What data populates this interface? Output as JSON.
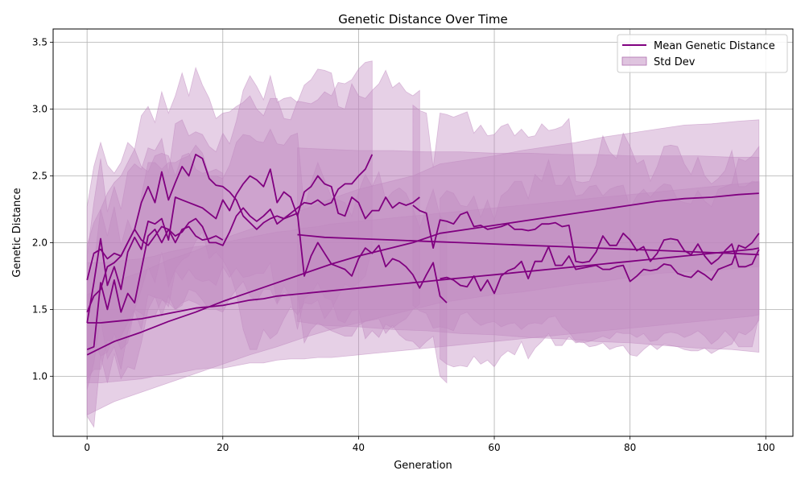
{
  "chart_data": {
    "type": "line",
    "title": "Genetic Distance Over Time",
    "xlabel": "Generation",
    "ylabel": "Genetic Distance",
    "xlim": [
      -5,
      104
    ],
    "ylim": [
      0.55,
      3.6
    ],
    "xticks": [
      0,
      20,
      40,
      60,
      80,
      100
    ],
    "yticks": [
      1.0,
      1.5,
      2.0,
      2.5,
      3.0,
      3.5
    ],
    "xtick_labels": [
      "0",
      "20",
      "40",
      "60",
      "80",
      "100"
    ],
    "ytick_labels": [
      "1.0",
      "1.5",
      "2.0",
      "2.5",
      "3.0",
      "3.5"
    ],
    "grid": true,
    "legend_position": "top-right",
    "legend": {
      "line_label": "Mean Genetic Distance",
      "band_label": "Std Dev"
    },
    "colors": {
      "line": "#800080",
      "band": "#c08ac0"
    },
    "series": [
      {
        "x": [
          0,
          1,
          2,
          3,
          4,
          5,
          6,
          7,
          8,
          9,
          10,
          11,
          12,
          13,
          14,
          15,
          16,
          17,
          18,
          19,
          20,
          21,
          22,
          23,
          24,
          25,
          26,
          27,
          28,
          29,
          30,
          31,
          32,
          33,
          34,
          35,
          36,
          37,
          38,
          39,
          40,
          41,
          42
        ],
        "mean": [
          1.72,
          1.92,
          1.95,
          1.88,
          1.92,
          1.9,
          2.0,
          2.1,
          2.3,
          2.42,
          2.3,
          2.53,
          2.32,
          2.45,
          2.57,
          2.5,
          2.66,
          2.63,
          2.48,
          2.43,
          2.42,
          2.38,
          2.32,
          2.2,
          2.15,
          2.1,
          2.15,
          2.18,
          2.2,
          2.18,
          2.22,
          2.26,
          2.3,
          2.29,
          2.32,
          2.28,
          2.3,
          2.4,
          2.44,
          2.44,
          2.5,
          2.55,
          2.66
        ],
        "std": [
          0.55,
          0.65,
          0.8,
          0.7,
          0.6,
          0.7,
          0.75,
          0.6,
          0.65,
          0.6,
          0.6,
          0.6,
          0.65,
          0.65,
          0.7,
          0.6,
          0.65,
          0.55,
          0.6,
          0.5,
          0.55,
          0.6,
          0.7,
          0.85,
          0.95,
          0.9,
          0.8,
          0.9,
          0.88,
          0.75,
          0.7,
          0.8,
          0.75,
          0.75,
          0.75,
          0.85,
          0.8,
          0.8,
          0.75,
          0.78,
          0.8,
          0.8,
          0.7
        ]
      },
      {
        "x": [
          0,
          1,
          2,
          3,
          4,
          5,
          6,
          7,
          8,
          9,
          10,
          11,
          12,
          13,
          14,
          15,
          16,
          17,
          18,
          19,
          20,
          21,
          22,
          23,
          24,
          25,
          26,
          27,
          28,
          29,
          30,
          31,
          32,
          33,
          34,
          35,
          36,
          37,
          38,
          39,
          40,
          41,
          42,
          43,
          44,
          45,
          46,
          47,
          48,
          49
        ],
        "mean": [
          1.4,
          1.7,
          2.03,
          1.68,
          1.82,
          1.65,
          1.93,
          2.04,
          1.95,
          2.16,
          2.14,
          2.18,
          2.02,
          2.34,
          2.32,
          2.3,
          2.28,
          2.26,
          2.22,
          2.18,
          2.32,
          2.24,
          2.36,
          2.44,
          2.5,
          2.47,
          2.42,
          2.55,
          2.3,
          2.38,
          2.34,
          2.2,
          2.38,
          2.42,
          2.5,
          2.44,
          2.42,
          2.22,
          2.2,
          2.34,
          2.3,
          2.18,
          2.24,
          2.24,
          2.34,
          2.26,
          2.3,
          2.28,
          2.3,
          2.34
        ],
        "std": [
          0.5,
          0.6,
          0.6,
          0.55,
          0.6,
          0.6,
          0.6,
          0.55,
          0.6,
          0.55,
          0.55,
          0.6,
          0.5,
          0.55,
          0.6,
          0.5,
          0.55,
          0.55,
          0.5,
          0.5,
          0.5,
          0.5,
          0.55,
          0.7,
          0.75,
          0.7,
          0.65,
          0.7,
          0.75,
          0.7,
          0.75,
          0.85,
          0.8,
          0.8,
          0.8,
          0.85,
          0.85,
          0.8,
          0.8,
          0.85,
          0.8,
          0.9,
          0.9,
          0.95,
          0.95,
          0.9,
          0.9,
          0.85,
          0.8,
          0.8
        ]
      },
      {
        "x": [
          0,
          1,
          2,
          3,
          4,
          5,
          6,
          7,
          8,
          9,
          10,
          11,
          12,
          13,
          14,
          15,
          16,
          17,
          18,
          19,
          20,
          21,
          22,
          23,
          24,
          25,
          26,
          27,
          28,
          29,
          30,
          31,
          32,
          33,
          34,
          35,
          36,
          37,
          38,
          39,
          40,
          41,
          42,
          43,
          44,
          45,
          46,
          47,
          48,
          49,
          50,
          51,
          52,
          53
        ],
        "mean": [
          1.2,
          1.22,
          1.7,
          1.5,
          1.72,
          1.48,
          1.62,
          1.55,
          1.8,
          2.05,
          2.1,
          2.0,
          2.1,
          2.05,
          2.08,
          2.15,
          2.18,
          2.12,
          2.0,
          2.0,
          1.98,
          2.08,
          2.2,
          2.26,
          2.2,
          2.16,
          2.2,
          2.25,
          2.14,
          2.18,
          2.2,
          2.22,
          1.75,
          1.9,
          2.0,
          1.92,
          1.84,
          1.82,
          1.8,
          1.75,
          1.88,
          1.96,
          1.92,
          1.98,
          1.82,
          1.88,
          1.86,
          1.82,
          1.76,
          1.66,
          1.76,
          1.85,
          1.6,
          1.55
        ],
        "std": [
          0.5,
          0.6,
          0.55,
          0.55,
          0.55,
          0.5,
          0.55,
          0.5,
          0.55,
          0.55,
          0.5,
          0.55,
          0.5,
          0.55,
          0.55,
          0.5,
          0.55,
          0.55,
          0.5,
          0.5,
          0.5,
          0.5,
          0.55,
          0.55,
          0.6,
          0.6,
          0.55,
          0.6,
          0.6,
          0.55,
          0.6,
          0.6,
          0.5,
          0.55,
          0.6,
          0.55,
          0.5,
          0.5,
          0.5,
          0.45,
          0.5,
          0.55,
          0.5,
          0.55,
          0.5,
          0.5,
          0.55,
          0.55,
          0.5,
          0.45,
          0.5,
          0.55,
          0.6,
          0.6
        ]
      },
      {
        "x": [
          0,
          1,
          2,
          3,
          4,
          5,
          6,
          7,
          8,
          9,
          10,
          11,
          12,
          13,
          14,
          15,
          16,
          17,
          18,
          19,
          20
        ],
        "mean": [
          1.48,
          1.6,
          1.65,
          1.82,
          1.85,
          1.9,
          2.0,
          2.1,
          2.02,
          1.98,
          2.05,
          2.12,
          2.1,
          2.0,
          2.1,
          2.12,
          2.05,
          2.02,
          2.03,
          2.05,
          2.02
        ],
        "std": [
          0.5,
          0.55,
          0.6,
          0.55,
          0.6,
          0.6,
          0.6,
          0.6,
          0.55,
          0.55,
          0.6,
          0.55,
          0.55,
          0.5,
          0.55,
          0.55,
          0.5,
          0.5,
          0.5,
          0.5,
          0.5
        ]
      },
      {
        "x": [
          0,
          2,
          4,
          6,
          8,
          10,
          12,
          14,
          16,
          18,
          20,
          22,
          24,
          26,
          28,
          30,
          32,
          34,
          36,
          38,
          40,
          42,
          44,
          46,
          48,
          50,
          52,
          54,
          56,
          58,
          60,
          62,
          64,
          66,
          68,
          70,
          72,
          74,
          76,
          78,
          80,
          82,
          84,
          86,
          88,
          90,
          92,
          94,
          96,
          98,
          99
        ],
        "mean": [
          1.4,
          1.4,
          1.41,
          1.42,
          1.43,
          1.45,
          1.47,
          1.49,
          1.51,
          1.52,
          1.53,
          1.55,
          1.57,
          1.58,
          1.6,
          1.61,
          1.62,
          1.63,
          1.64,
          1.65,
          1.66,
          1.67,
          1.68,
          1.69,
          1.7,
          1.71,
          1.72,
          1.73,
          1.74,
          1.75,
          1.76,
          1.77,
          1.78,
          1.79,
          1.8,
          1.81,
          1.82,
          1.83,
          1.84,
          1.85,
          1.86,
          1.87,
          1.88,
          1.89,
          1.9,
          1.91,
          1.92,
          1.93,
          1.94,
          1.95,
          1.96
        ],
        "std": [
          0.45,
          0.45,
          0.45,
          0.45,
          0.45,
          0.45,
          0.46,
          0.46,
          0.46,
          0.46,
          0.47,
          0.47,
          0.47,
          0.48,
          0.48,
          0.48,
          0.49,
          0.49,
          0.5,
          0.5,
          0.5,
          0.5,
          0.5,
          0.5,
          0.5,
          0.5,
          0.5,
          0.5,
          0.5,
          0.5,
          0.5,
          0.5,
          0.5,
          0.5,
          0.5,
          0.5,
          0.5,
          0.5,
          0.5,
          0.5,
          0.5,
          0.5,
          0.5,
          0.5,
          0.5,
          0.5,
          0.5,
          0.5,
          0.5,
          0.5,
          0.5
        ]
      },
      {
        "x": [
          0,
          4,
          8,
          12,
          16,
          20,
          24,
          28,
          32,
          36,
          40,
          44,
          48,
          52,
          56,
          60,
          64,
          68,
          72,
          76,
          80,
          84,
          88,
          92,
          96,
          99
        ],
        "mean": [
          1.16,
          1.26,
          1.33,
          1.41,
          1.48,
          1.56,
          1.63,
          1.7,
          1.77,
          1.84,
          1.9,
          1.95,
          2.0,
          2.07,
          2.1,
          2.13,
          2.16,
          2.19,
          2.22,
          2.25,
          2.28,
          2.31,
          2.33,
          2.34,
          2.36,
          2.37
        ],
        "std": [
          0.45,
          0.45,
          0.45,
          0.46,
          0.46,
          0.47,
          0.47,
          0.48,
          0.48,
          0.49,
          0.5,
          0.5,
          0.5,
          0.52,
          0.52,
          0.52,
          0.53,
          0.53,
          0.53,
          0.54,
          0.54,
          0.54,
          0.55,
          0.55,
          0.55,
          0.55
        ]
      },
      {
        "x": [
          31,
          35,
          40,
          45,
          50,
          55,
          60,
          65,
          70,
          75,
          80,
          85,
          90,
          95,
          99
        ],
        "mean": [
          2.06,
          2.04,
          2.03,
          2.02,
          2.01,
          2.0,
          1.99,
          1.98,
          1.97,
          1.96,
          1.95,
          1.94,
          1.93,
          1.92,
          1.91
        ],
        "std": [
          0.65,
          0.66,
          0.66,
          0.67,
          0.67,
          0.68,
          0.68,
          0.69,
          0.69,
          0.7,
          0.7,
          0.71,
          0.72,
          0.72,
          0.73
        ]
      },
      {
        "x": [
          48,
          49,
          50,
          51,
          52,
          53,
          54,
          55,
          56,
          57,
          58,
          59,
          60,
          61,
          62,
          63,
          64,
          65,
          66,
          67,
          68,
          69,
          70,
          71,
          72,
          73,
          74,
          75,
          76,
          77,
          78,
          79,
          80,
          81,
          82,
          83,
          84,
          85,
          86,
          87,
          88,
          89,
          90,
          91,
          92,
          93,
          94,
          95,
          96,
          97,
          98,
          99
        ],
        "mean": [
          2.28,
          2.24,
          2.22,
          1.96,
          2.17,
          2.16,
          2.14,
          2.21,
          2.23,
          2.12,
          2.13,
          2.1,
          2.11,
          2.12,
          2.14,
          2.1,
          2.1,
          2.09,
          2.1,
          2.14,
          2.14,
          2.15,
          2.12,
          2.13,
          1.86,
          1.85,
          1.86,
          1.93,
          2.05,
          1.98,
          1.98,
          2.07,
          2.02,
          1.94,
          1.97,
          1.86,
          1.92,
          2.02,
          2.03,
          2.02,
          1.94,
          1.91,
          1.99,
          1.9,
          1.84,
          1.88,
          1.94,
          1.99,
          1.82,
          1.82,
          1.84,
          1.95
        ],
        "std": [
          0.75,
          0.75,
          0.75,
          0.6,
          0.8,
          0.8,
          0.8,
          0.75,
          0.75,
          0.7,
          0.75,
          0.7,
          0.7,
          0.75,
          0.75,
          0.7,
          0.75,
          0.7,
          0.7,
          0.75,
          0.7,
          0.7,
          0.75,
          0.8,
          0.6,
          0.6,
          0.6,
          0.65,
          0.75,
          0.7,
          0.65,
          0.75,
          0.7,
          0.65,
          0.65,
          0.6,
          0.65,
          0.7,
          0.7,
          0.7,
          0.65,
          0.6,
          0.65,
          0.6,
          0.6,
          0.6,
          0.6,
          0.7,
          0.6,
          0.6,
          0.62,
          0.5
        ]
      },
      {
        "x": [
          52,
          53,
          54,
          55,
          56,
          57,
          58,
          59,
          60,
          61,
          62,
          63,
          64,
          65,
          66,
          67,
          68,
          69,
          70,
          71,
          72,
          73,
          74,
          75,
          76,
          77,
          78,
          79,
          80,
          81,
          82,
          83,
          84,
          85,
          86,
          87,
          88,
          89,
          90,
          91,
          92,
          93,
          94,
          95,
          96,
          97,
          98,
          99
        ],
        "mean": [
          1.73,
          1.74,
          1.72,
          1.68,
          1.67,
          1.75,
          1.64,
          1.72,
          1.62,
          1.75,
          1.79,
          1.81,
          1.86,
          1.73,
          1.86,
          1.86,
          1.97,
          1.83,
          1.83,
          1.9,
          1.8,
          1.81,
          1.82,
          1.83,
          1.8,
          1.8,
          1.82,
          1.83,
          1.71,
          1.75,
          1.8,
          1.79,
          1.8,
          1.84,
          1.83,
          1.77,
          1.75,
          1.74,
          1.79,
          1.76,
          1.72,
          1.8,
          1.82,
          1.84,
          1.98,
          1.96,
          2.0,
          2.07
        ],
        "std": [
          0.6,
          0.65,
          0.65,
          0.6,
          0.6,
          0.6,
          0.55,
          0.6,
          0.55,
          0.6,
          0.6,
          0.65,
          0.6,
          0.6,
          0.65,
          0.6,
          0.65,
          0.6,
          0.6,
          0.6,
          0.55,
          0.55,
          0.6,
          0.6,
          0.55,
          0.6,
          0.6,
          0.6,
          0.55,
          0.6,
          0.6,
          0.55,
          0.6,
          0.6,
          0.6,
          0.55,
          0.55,
          0.55,
          0.6,
          0.55,
          0.55,
          0.6,
          0.6,
          0.6,
          0.65,
          0.65,
          0.65,
          0.65
        ]
      }
    ]
  }
}
